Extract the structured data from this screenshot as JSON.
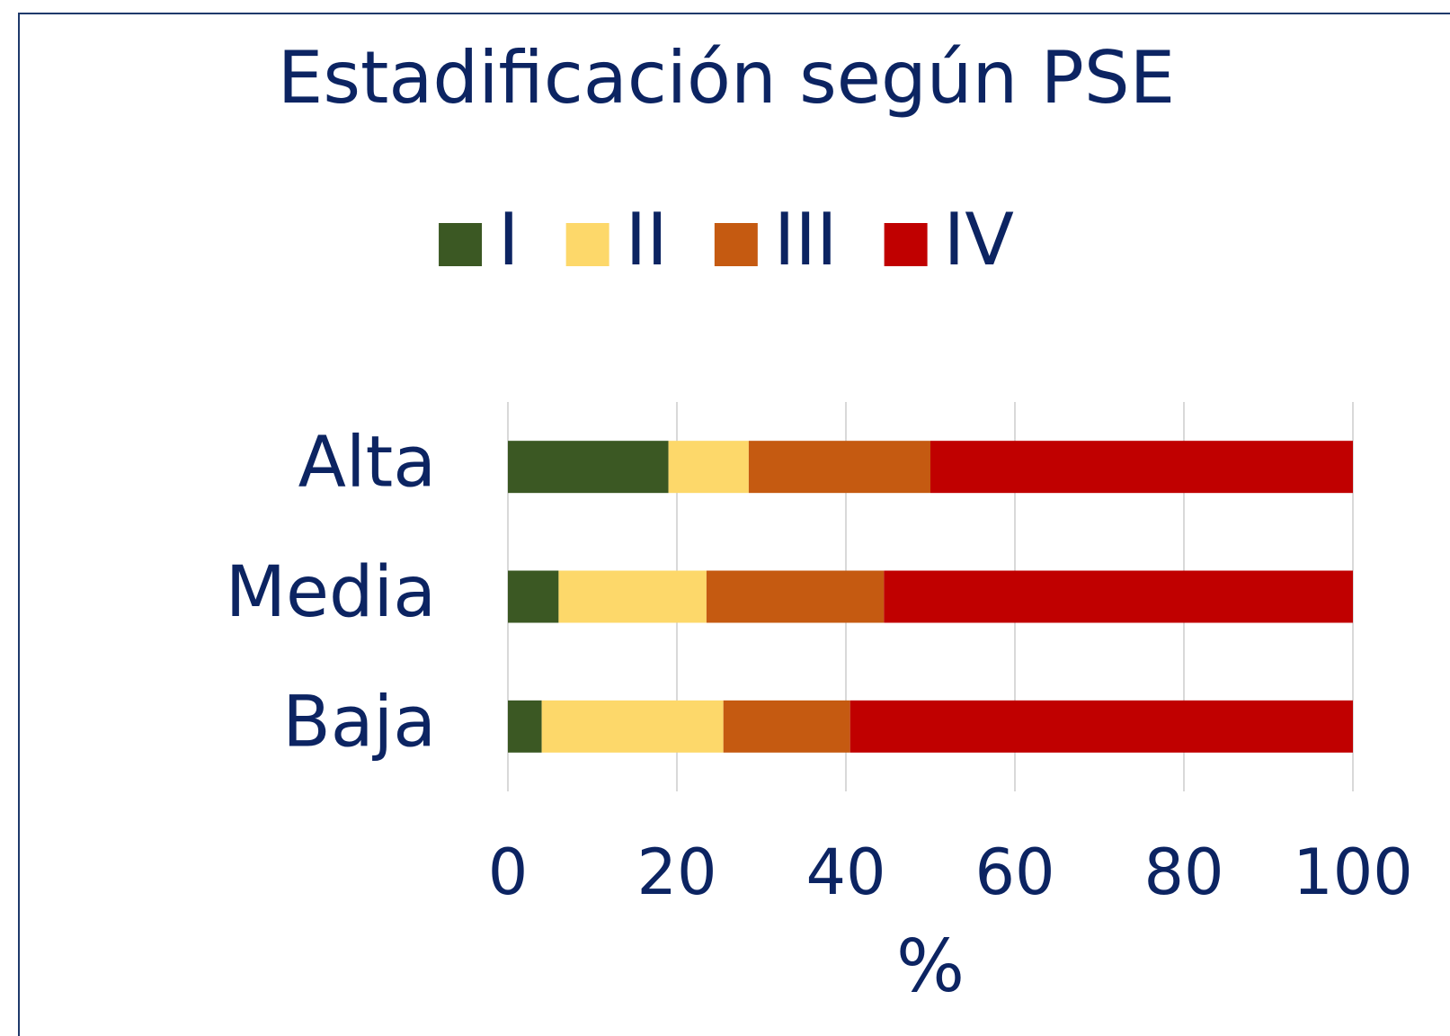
{
  "chart_data": {
    "type": "stacked-bar-horizontal",
    "title": "Estadificación según PSE",
    "categories": [
      "Alta",
      "Media",
      "Baja"
    ],
    "series": [
      {
        "name": "I",
        "color": "#3b5823",
        "values": [
          19,
          6,
          4
        ]
      },
      {
        "name": "II",
        "color": "#fdd86a",
        "values": [
          9.5,
          17.5,
          21.5
        ]
      },
      {
        "name": "III",
        "color": "#c55a11",
        "values": [
          21.5,
          21,
          15
        ]
      },
      {
        "name": "IV",
        "color": "#c00000",
        "values": [
          50,
          55.5,
          59.5
        ]
      }
    ],
    "xlim": [
      0,
      100
    ],
    "xticks": [
      0,
      20,
      40,
      60,
      80,
      100
    ],
    "xlabel": "%",
    "grid": true,
    "legend": "top"
  }
}
